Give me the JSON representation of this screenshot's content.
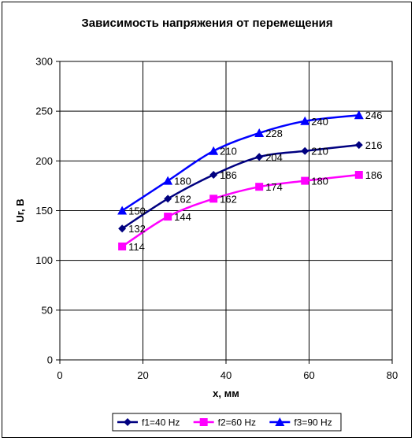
{
  "chart_data": {
    "type": "line",
    "title": "Зависимость напряжения от перемещения",
    "xlabel": "x, мм",
    "ylabel": "Ur, B",
    "xlim": [
      0,
      80
    ],
    "ylim": [
      0,
      300
    ],
    "xticks": [
      0,
      20,
      40,
      60,
      80
    ],
    "yticks": [
      0,
      50,
      100,
      150,
      200,
      250,
      300
    ],
    "grid": true,
    "legend_position": "bottom",
    "x": [
      15,
      26,
      37,
      48,
      59,
      72
    ],
    "series": [
      {
        "name": "f1=40 Hz",
        "values": [
          132,
          162,
          186,
          204,
          210,
          216
        ],
        "color": "#000080",
        "marker": "diamond"
      },
      {
        "name": "f2=60 Hz",
        "values": [
          114,
          144,
          162,
          174,
          180,
          186
        ],
        "color": "#ff00ff",
        "marker": "square"
      },
      {
        "name": "f3=90 Hz",
        "values": [
          150,
          180,
          210,
          228,
          240,
          246
        ],
        "color": "#0000ff",
        "marker": "triangle"
      }
    ]
  }
}
